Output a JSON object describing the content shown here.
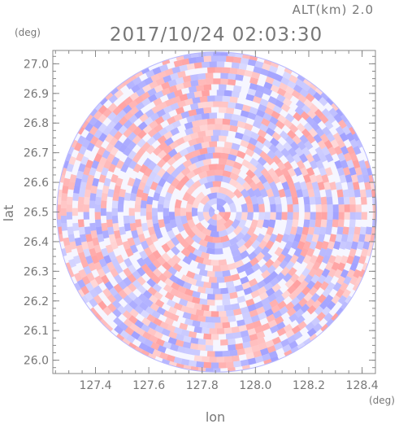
{
  "header": {
    "altitude": "ALT(km) 2.0",
    "timestamp": "2017/10/24 02:03:30"
  },
  "chart_data": {
    "type": "heatmap",
    "title": "2017/10/24 02:03:30",
    "annotation": "ALT(km) 2.0",
    "xlabel": "lon",
    "ylabel": "lat",
    "x_unit": "(deg)",
    "y_unit": "(deg)",
    "xlim": [
      127.24,
      128.45
    ],
    "ylim": [
      25.955,
      27.045
    ],
    "xticks": [
      127.4,
      127.6,
      127.8,
      128.0,
      128.2,
      128.4
    ],
    "xtick_labels": [
      "127.4",
      "127.6",
      "127.8",
      "128.0",
      "128.2",
      "128.4"
    ],
    "yticks": [
      26.0,
      26.1,
      26.2,
      26.3,
      26.4,
      26.5,
      26.6,
      26.7,
      26.8,
      26.9,
      27.0
    ],
    "ytick_labels": [
      "26.0",
      "26.1",
      "26.2",
      "26.3",
      "26.4",
      "26.5",
      "26.6",
      "26.7",
      "26.8",
      "26.9",
      "27.0"
    ],
    "center": {
      "lon": 127.855,
      "lat": 26.5
    },
    "radius_lat_deg": 0.54,
    "colors": {
      "positive": "#ffa0a0",
      "negative": "#a0a0ff",
      "neutral": "#ffffff",
      "frame": "#888888",
      "text": "#777777"
    },
    "grid": false,
    "legend": "none"
  }
}
